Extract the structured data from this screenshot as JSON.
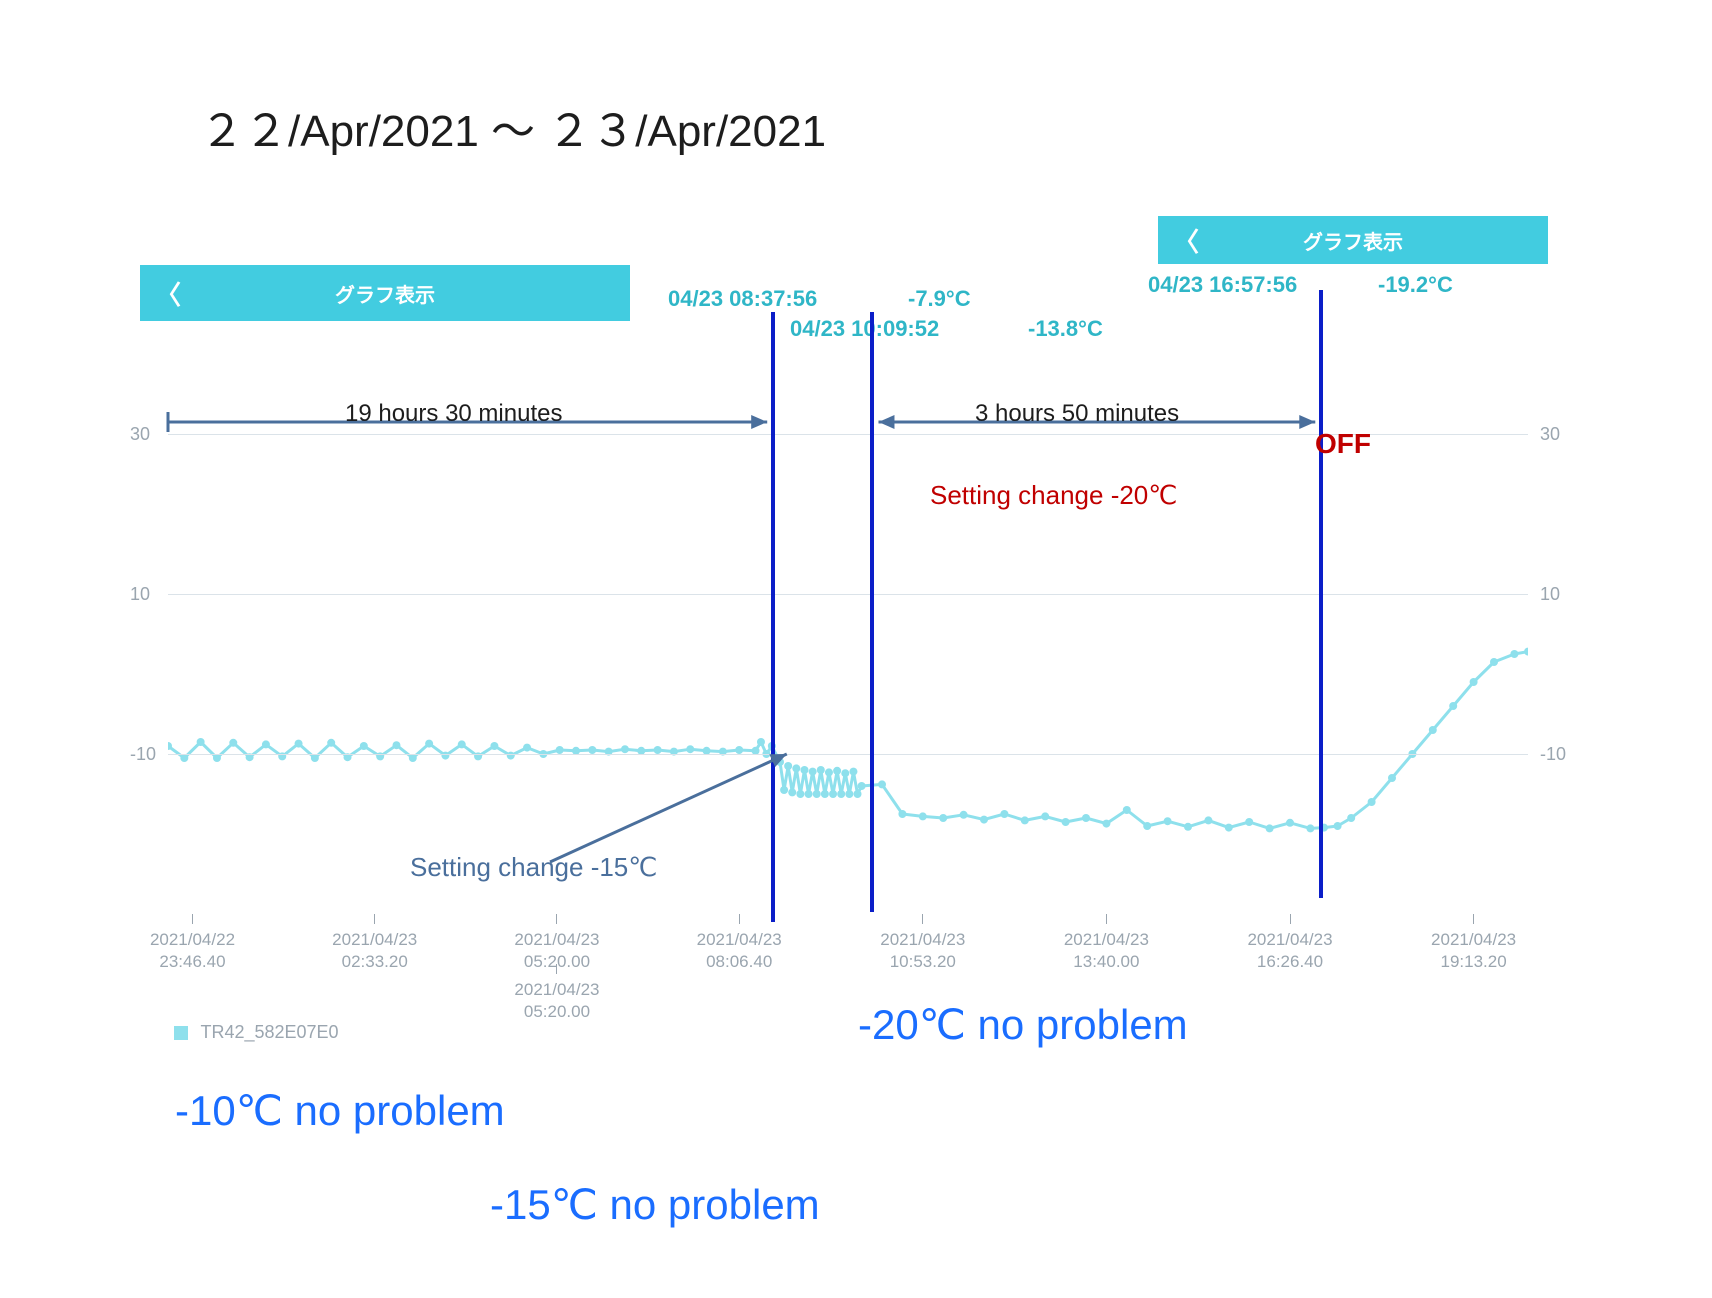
{
  "page": {
    "title": "２２/Apr/2021 ～ ２３/Apr/2021",
    "title_color": "#1d1d1d",
    "title_fontsize": 44
  },
  "title_bars": {
    "left": {
      "label": "グラフ表示",
      "background": "#42cce0",
      "text_color": "#ffffff"
    },
    "right": {
      "label": "グラフ表示",
      "background": "#42cce0",
      "text_color": "#ffffff"
    }
  },
  "cursor_readouts": {
    "a_time": "04/23 08:37:56",
    "a_value": "-7.9°C",
    "b_time": "04/23 10:09:52",
    "b_value": "-13.8°C",
    "c_time": "04/23 16:57:56",
    "c_value": "-19.2°C",
    "color": "#2fb6c7",
    "fontsize": 22
  },
  "chart": {
    "grid_color": "#dbe3e9",
    "axis_tick_color": "#9aa5af",
    "line_color": "#8ee0ec",
    "marker_color": "#8ee0ec",
    "background": "#ffffff",
    "ylim": [
      -30,
      40
    ],
    "ytick_step": 20,
    "axis_label_fontsize": 18,
    "x_ticks": [
      {
        "x": 0.018,
        "l1": "2021/04/22",
        "l2": "23:46.40"
      },
      {
        "x": 0.152,
        "l1": "2021/04/23",
        "l2": "02:33.20"
      },
      {
        "x": 0.286,
        "l1": "2021/04/23",
        "l2": "05:20.00"
      },
      {
        "x": 0.42,
        "l1": "2021/04/23",
        "l2": "08:06.40"
      },
      {
        "x": 0.286,
        "l1": "2021/04/23",
        "l2": "05:20.00",
        "dup": true
      },
      {
        "x": 0.555,
        "l1": "2021/04/23",
        "l2": "10:53.20"
      },
      {
        "x": 0.69,
        "l1": "2021/04/23",
        "l2": "13:40.00"
      },
      {
        "x": 0.825,
        "l1": "2021/04/23",
        "l2": "16:26.40"
      },
      {
        "x": 0.96,
        "l1": "2021/04/23",
        "l2": "19:13.20"
      }
    ],
    "series": [
      {
        "x": 0.0,
        "y": -9
      },
      {
        "x": 0.012,
        "y": -10.5
      },
      {
        "x": 0.024,
        "y": -8.5
      },
      {
        "x": 0.036,
        "y": -10.5
      },
      {
        "x": 0.048,
        "y": -8.6
      },
      {
        "x": 0.06,
        "y": -10.4
      },
      {
        "x": 0.072,
        "y": -8.8
      },
      {
        "x": 0.084,
        "y": -10.3
      },
      {
        "x": 0.096,
        "y": -8.7
      },
      {
        "x": 0.108,
        "y": -10.5
      },
      {
        "x": 0.12,
        "y": -8.6
      },
      {
        "x": 0.132,
        "y": -10.4
      },
      {
        "x": 0.144,
        "y": -9.0
      },
      {
        "x": 0.156,
        "y": -10.3
      },
      {
        "x": 0.168,
        "y": -8.9
      },
      {
        "x": 0.18,
        "y": -10.5
      },
      {
        "x": 0.192,
        "y": -8.7
      },
      {
        "x": 0.204,
        "y": -10.2
      },
      {
        "x": 0.216,
        "y": -8.8
      },
      {
        "x": 0.228,
        "y": -10.3
      },
      {
        "x": 0.24,
        "y": -9.0
      },
      {
        "x": 0.252,
        "y": -10.2
      },
      {
        "x": 0.264,
        "y": -9.2
      },
      {
        "x": 0.276,
        "y": -10.0
      },
      {
        "x": 0.288,
        "y": -9.5
      },
      {
        "x": 0.3,
        "y": -9.6
      },
      {
        "x": 0.312,
        "y": -9.5
      },
      {
        "x": 0.324,
        "y": -9.7
      },
      {
        "x": 0.336,
        "y": -9.4
      },
      {
        "x": 0.348,
        "y": -9.6
      },
      {
        "x": 0.36,
        "y": -9.5
      },
      {
        "x": 0.372,
        "y": -9.7
      },
      {
        "x": 0.384,
        "y": -9.4
      },
      {
        "x": 0.396,
        "y": -9.6
      },
      {
        "x": 0.408,
        "y": -9.7
      },
      {
        "x": 0.42,
        "y": -9.5
      },
      {
        "x": 0.432,
        "y": -9.6
      },
      {
        "x": 0.436,
        "y": -8.5
      },
      {
        "x": 0.44,
        "y": -10.0
      },
      {
        "x": 0.444,
        "y": -9.0
      },
      {
        "x": 0.45,
        "y": -11.0
      },
      {
        "x": 0.453,
        "y": -14.5
      },
      {
        "x": 0.456,
        "y": -11.5
      },
      {
        "x": 0.459,
        "y": -14.8
      },
      {
        "x": 0.462,
        "y": -11.8
      },
      {
        "x": 0.465,
        "y": -15.0
      },
      {
        "x": 0.468,
        "y": -12.0
      },
      {
        "x": 0.471,
        "y": -15.0
      },
      {
        "x": 0.474,
        "y": -12.2
      },
      {
        "x": 0.477,
        "y": -15.0
      },
      {
        "x": 0.48,
        "y": -12.0
      },
      {
        "x": 0.483,
        "y": -15.0
      },
      {
        "x": 0.486,
        "y": -12.3
      },
      {
        "x": 0.489,
        "y": -15.0
      },
      {
        "x": 0.492,
        "y": -12.1
      },
      {
        "x": 0.495,
        "y": -15.0
      },
      {
        "x": 0.498,
        "y": -12.4
      },
      {
        "x": 0.501,
        "y": -15.0
      },
      {
        "x": 0.504,
        "y": -12.2
      },
      {
        "x": 0.507,
        "y": -15.0
      },
      {
        "x": 0.51,
        "y": -14.0
      },
      {
        "x": 0.525,
        "y": -13.8
      },
      {
        "x": 0.54,
        "y": -17.5
      },
      {
        "x": 0.555,
        "y": -17.8
      },
      {
        "x": 0.57,
        "y": -18.0
      },
      {
        "x": 0.585,
        "y": -17.6
      },
      {
        "x": 0.6,
        "y": -18.2
      },
      {
        "x": 0.615,
        "y": -17.5
      },
      {
        "x": 0.63,
        "y": -18.3
      },
      {
        "x": 0.645,
        "y": -17.8
      },
      {
        "x": 0.66,
        "y": -18.5
      },
      {
        "x": 0.675,
        "y": -18.0
      },
      {
        "x": 0.69,
        "y": -18.7
      },
      {
        "x": 0.705,
        "y": -17.0
      },
      {
        "x": 0.72,
        "y": -19.0
      },
      {
        "x": 0.735,
        "y": -18.4
      },
      {
        "x": 0.75,
        "y": -19.1
      },
      {
        "x": 0.765,
        "y": -18.3
      },
      {
        "x": 0.78,
        "y": -19.2
      },
      {
        "x": 0.795,
        "y": -18.5
      },
      {
        "x": 0.81,
        "y": -19.3
      },
      {
        "x": 0.825,
        "y": -18.6
      },
      {
        "x": 0.84,
        "y": -19.3
      },
      {
        "x": 0.85,
        "y": -19.2
      },
      {
        "x": 0.86,
        "y": -19.0
      },
      {
        "x": 0.87,
        "y": -18.0
      },
      {
        "x": 0.885,
        "y": -16.0
      },
      {
        "x": 0.9,
        "y": -13.0
      },
      {
        "x": 0.915,
        "y": -10.0
      },
      {
        "x": 0.93,
        "y": -7.0
      },
      {
        "x": 0.945,
        "y": -4.0
      },
      {
        "x": 0.96,
        "y": -1.0
      },
      {
        "x": 0.975,
        "y": 1.5
      },
      {
        "x": 0.99,
        "y": 2.5
      },
      {
        "x": 1.0,
        "y": 2.8
      }
    ],
    "legend": {
      "swatch_color": "#8ee0ec",
      "label": "TR42_582E07E0"
    }
  },
  "markers": {
    "blue_line_color": "#0b1ec8",
    "x_positions": [
      0.445,
      0.518,
      0.848
    ]
  },
  "annotations": {
    "span1": {
      "text": "19 hours 30 minutes",
      "color": "#1d1d1d",
      "fontsize": 24,
      "arrow_color": "#4a6f9c"
    },
    "span2": {
      "text": "3 hours 50 minutes",
      "color": "#1d1d1d",
      "fontsize": 24,
      "arrow_color": "#4a6f9c"
    },
    "setting_15": {
      "text": "Setting change -15℃",
      "color": "#4a6f9c",
      "fontsize": 26,
      "arrow_color": "#4a6f9c"
    },
    "setting_20": {
      "text": "Setting change -20℃",
      "color": "#c00000",
      "fontsize": 26
    },
    "off": {
      "text": "OFF",
      "color": "#c00000",
      "fontsize": 28
    }
  },
  "callouts": {
    "color": "#1a6dff",
    "fontsize": 42,
    "m10": "-10℃   no problem",
    "m15": "-15℃   no problem",
    "m20": "-20℃   no problem"
  }
}
